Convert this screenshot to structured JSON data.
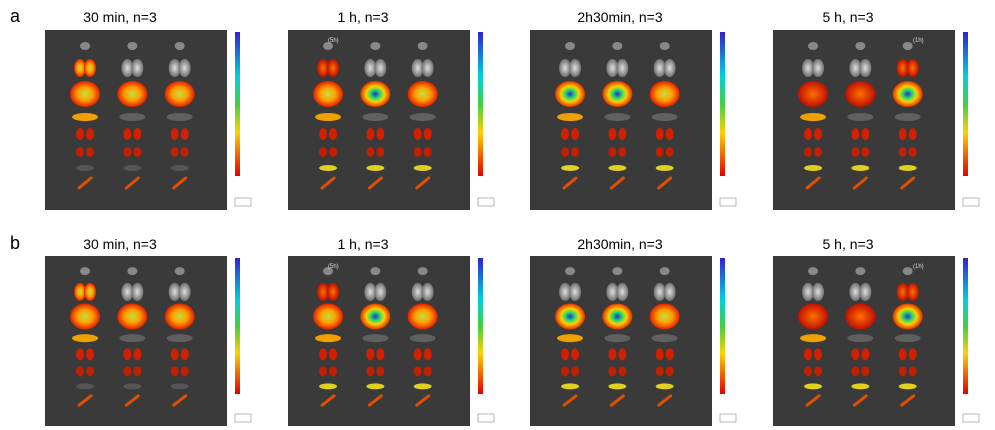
{
  "panels": [
    {
      "label": "a",
      "images": [
        {
          "title": "30 min, n=3"
        },
        {
          "title": "1 h, n=3",
          "note": "(5h)"
        },
        {
          "title": "2h30min, n=3"
        },
        {
          "title": "5 h, n=3",
          "note": "(1h)"
        }
      ]
    },
    {
      "label": "b",
      "images": [
        {
          "title": "30 min, n=3"
        },
        {
          "title": "1 h, n=3",
          "note": "(5h)"
        },
        {
          "title": "2h30min, n=3"
        },
        {
          "title": "5 h, n=3",
          "note": "(1h)"
        }
      ]
    }
  ]
}
